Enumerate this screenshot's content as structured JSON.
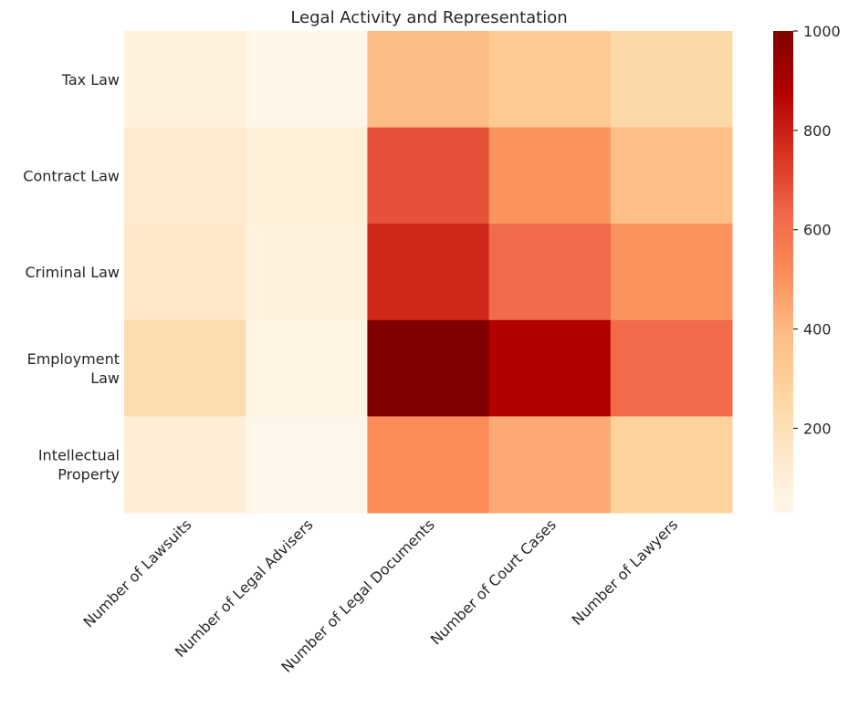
{
  "chart_data": {
    "type": "heatmap",
    "title": "Legal Activity and Representation",
    "columns": [
      "Number of Lawsuits",
      "Number of Legal Advisers",
      "Number of Legal Documents",
      "Number of Court Cases",
      "Number of Lawyers"
    ],
    "rows": [
      {
        "label_lines": [
          "Tax Law"
        ],
        "values": [
          80,
          45,
          390,
          320,
          240
        ]
      },
      {
        "label_lines": [
          "Contract Law"
        ],
        "values": [
          130,
          90,
          680,
          500,
          380
        ]
      },
      {
        "label_lines": [
          "Criminal Law"
        ],
        "values": [
          150,
          80,
          780,
          620,
          500
        ]
      },
      {
        "label_lines": [
          "Employment",
          "Law"
        ],
        "values": [
          220,
          60,
          1000,
          880,
          620
        ]
      },
      {
        "label_lines": [
          "Intellectual",
          "Property"
        ],
        "values": [
          100,
          35,
          520,
          440,
          280
        ]
      }
    ],
    "colormap": "OrRd",
    "colorbar": {
      "min": 30,
      "max": 1000,
      "ticks": [
        200,
        400,
        600,
        800,
        1000
      ]
    },
    "grid": false
  }
}
